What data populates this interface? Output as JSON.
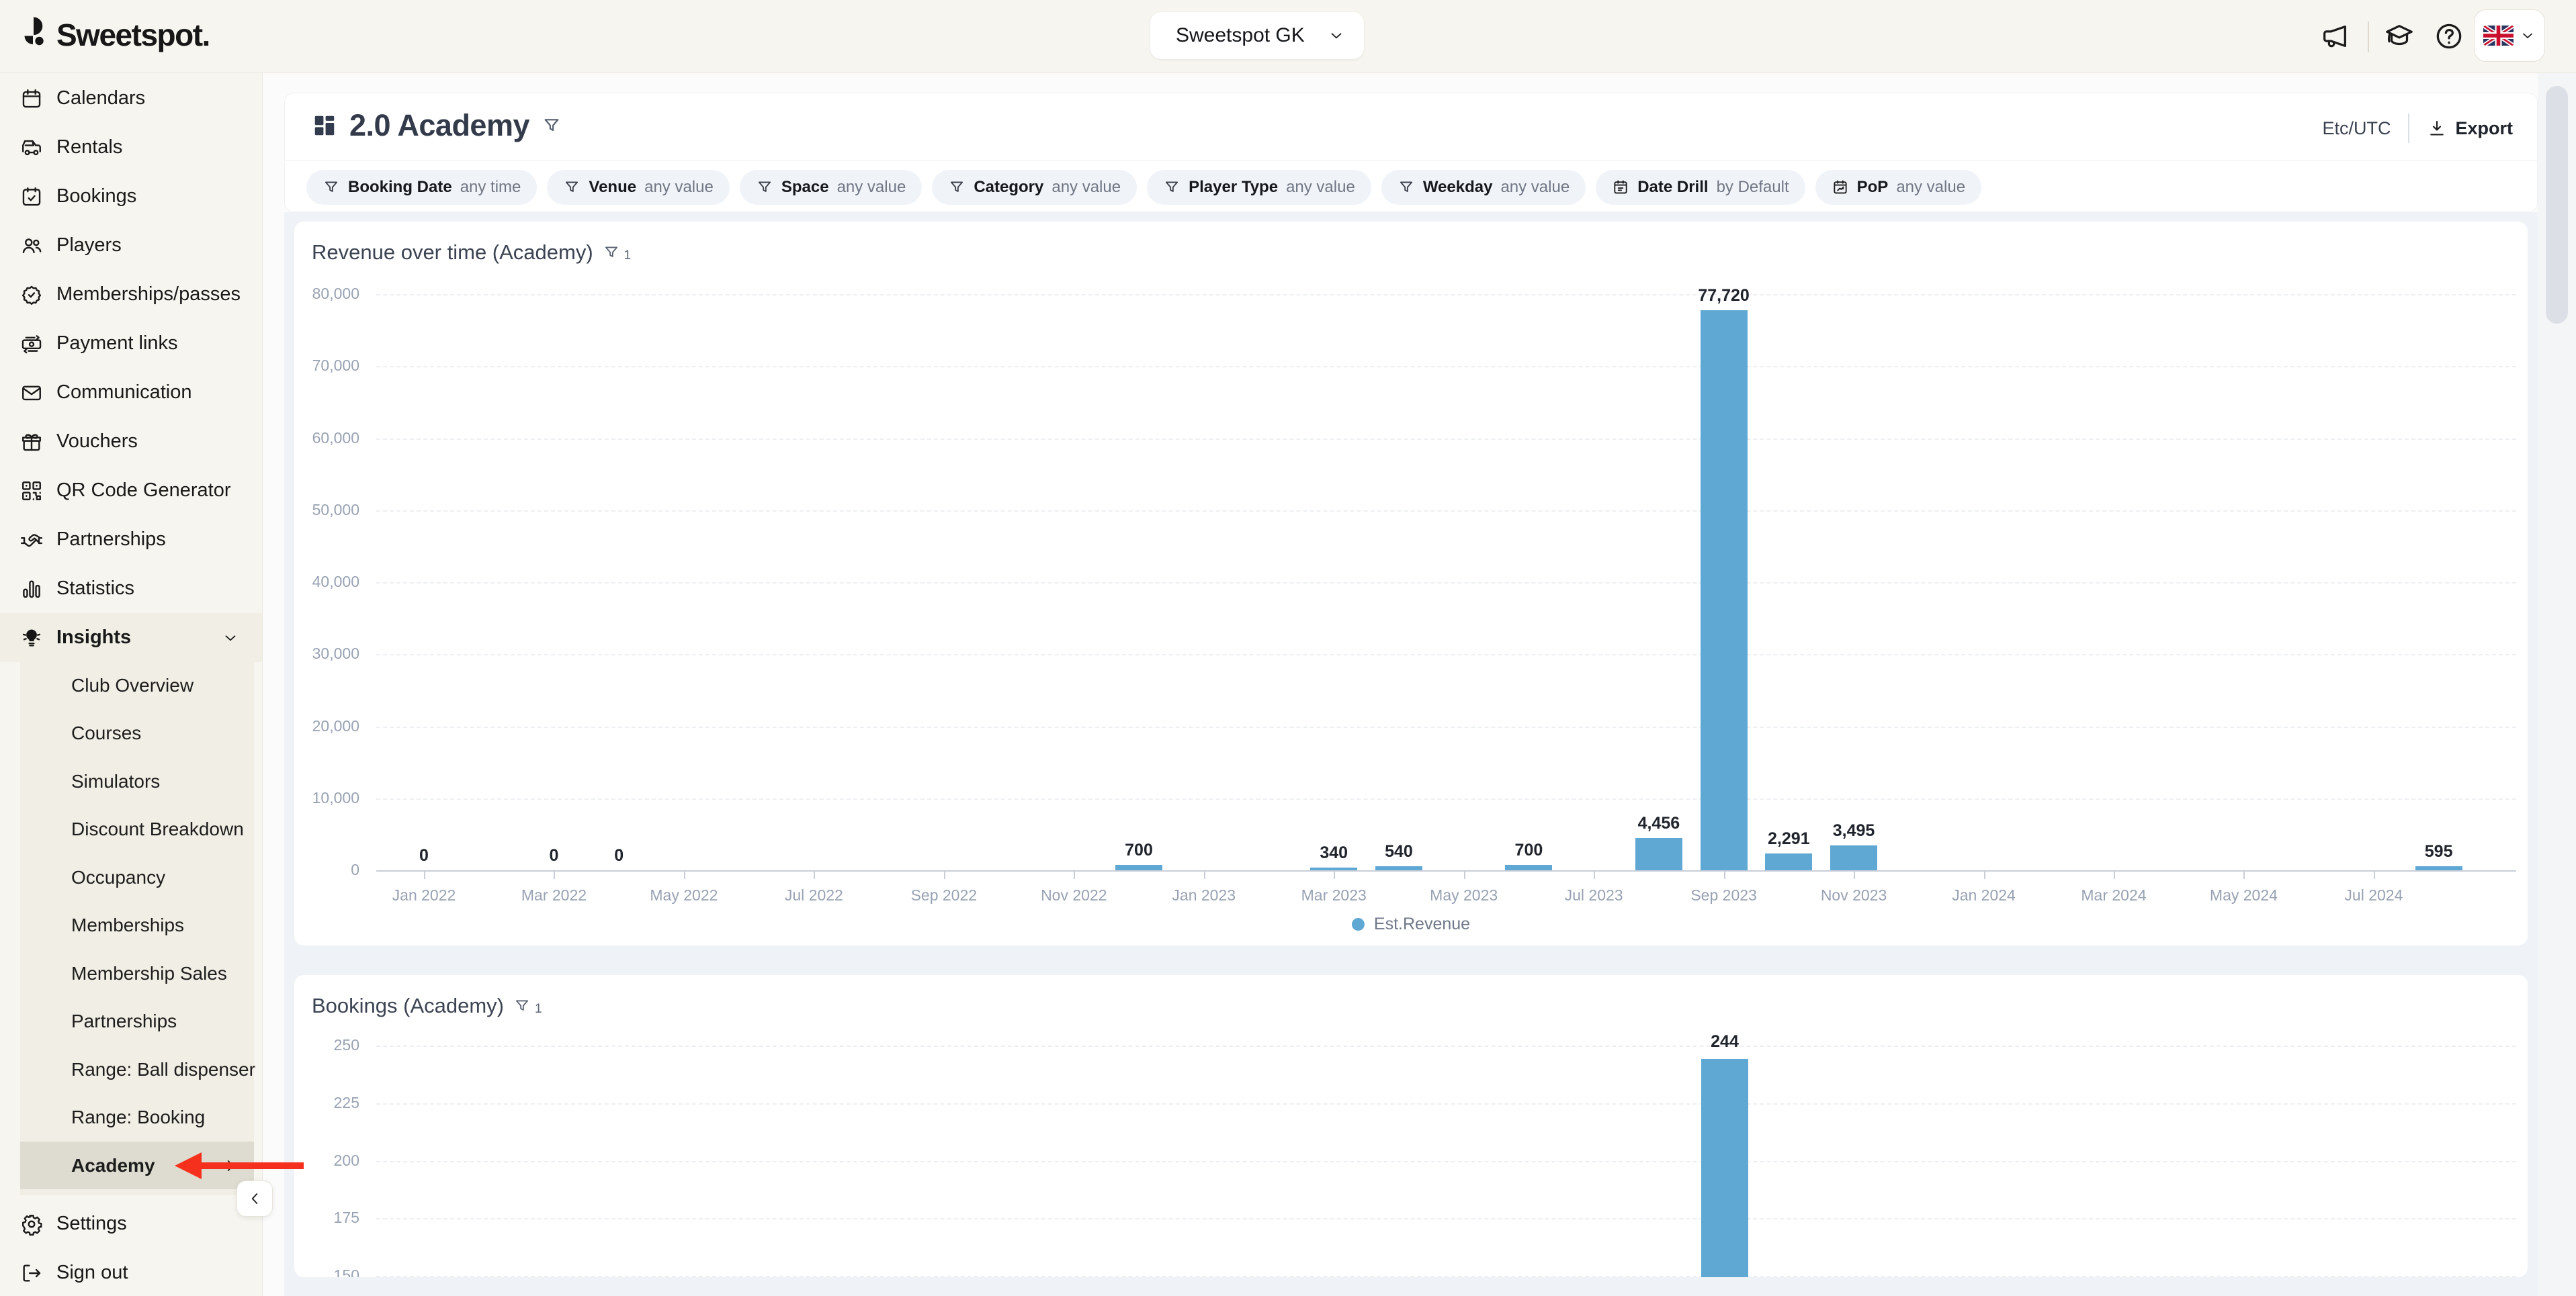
{
  "topbar": {
    "logo": "Sweetspot.",
    "org_selector": {
      "value": "Sweetspot GK"
    },
    "action_icons": [
      "megaphone",
      "graduation-cap",
      "help-circle"
    ],
    "language": {
      "flag": "united-kingdom"
    }
  },
  "sidebar": {
    "items": [
      {
        "label": "Calendars",
        "icon": "calendar"
      },
      {
        "label": "Rentals",
        "icon": "golf-cart"
      },
      {
        "label": "Bookings",
        "icon": "calendar-check"
      },
      {
        "label": "Players",
        "icon": "users"
      },
      {
        "label": "Memberships/passes",
        "icon": "badge-check"
      },
      {
        "label": "Payment links",
        "icon": "banknote"
      },
      {
        "label": "Communication",
        "icon": "envelope"
      },
      {
        "label": "Vouchers",
        "icon": "gift"
      },
      {
        "label": "QR Code Generator",
        "icon": "qr-code"
      },
      {
        "label": "Partnerships",
        "icon": "handshake"
      },
      {
        "label": "Statistics",
        "icon": "bar-chart"
      },
      {
        "label": "Insights",
        "icon": "lightbulb",
        "expanded": true
      }
    ],
    "insights_children": [
      {
        "label": "Club Overview"
      },
      {
        "label": "Courses"
      },
      {
        "label": "Simulators"
      },
      {
        "label": "Discount Breakdown"
      },
      {
        "label": "Occupancy"
      },
      {
        "label": "Memberships"
      },
      {
        "label": "Membership Sales"
      },
      {
        "label": "Partnerships"
      },
      {
        "label": "Range: Ball dispenser"
      },
      {
        "label": "Range: Booking"
      },
      {
        "label": "Academy",
        "selected": true
      }
    ],
    "footer": [
      {
        "label": "Settings",
        "icon": "gear"
      },
      {
        "label": "Sign out",
        "icon": "sign-out"
      }
    ]
  },
  "header": {
    "title": "2.0 Academy",
    "timezone": "Etc/UTC",
    "export_label": "Export"
  },
  "filters": [
    {
      "label": "Booking Date",
      "value": "any time",
      "icon": "funnel"
    },
    {
      "label": "Venue",
      "value": "any value",
      "icon": "funnel"
    },
    {
      "label": "Space",
      "value": "any value",
      "icon": "funnel"
    },
    {
      "label": "Category",
      "value": "any value",
      "icon": "funnel"
    },
    {
      "label": "Player Type",
      "value": "any value",
      "icon": "funnel"
    },
    {
      "label": "Weekday",
      "value": "any value",
      "icon": "funnel"
    },
    {
      "label": "Date Drill",
      "value": "by Default",
      "icon": "calendar-clock"
    },
    {
      "label": "PoP",
      "value": "any value",
      "icon": "calendar-trend"
    }
  ],
  "chart_data": [
    {
      "type": "bar",
      "title": "Revenue over time (Academy)",
      "filter_count": "1",
      "series": [
        {
          "name": "Est.Revenue",
          "color": "#5fa8d3"
        }
      ],
      "ylim": [
        0,
        80000
      ],
      "y_ticks": [
        "80,000",
        "70,000",
        "60,000",
        "50,000",
        "40,000",
        "30,000",
        "20,000",
        "10,000",
        "0"
      ],
      "x_ticks": [
        "Jan 2022",
        "Mar 2022",
        "May 2022",
        "Jul 2022",
        "Sep 2022",
        "Nov 2022",
        "Jan 2023",
        "Mar 2023",
        "May 2023",
        "Jul 2023",
        "Sep 2023",
        "Nov 2023",
        "Jan 2024",
        "Mar 2024",
        "May 2024",
        "Jul 2024"
      ],
      "bars": [
        {
          "month": "Jan 2022",
          "value": 0,
          "label": "0"
        },
        {
          "month": "Mar 2022",
          "value": 0,
          "label": "0"
        },
        {
          "month": "Apr 2022",
          "value": 0,
          "label": "0"
        },
        {
          "month": "Dec 2022",
          "value": 700,
          "label": "700"
        },
        {
          "month": "Mar 2023",
          "value": 340,
          "label": "340"
        },
        {
          "month": "Apr 2023",
          "value": 540,
          "label": "540"
        },
        {
          "month": "Jun 2023",
          "value": 700,
          "label": "700"
        },
        {
          "month": "Aug 2023",
          "value": 4456,
          "label": "4,456"
        },
        {
          "month": "Sep 2023",
          "value": 77720,
          "label": "77,720"
        },
        {
          "month": "Oct 2023",
          "value": 2291,
          "label": "2,291"
        },
        {
          "month": "Nov 2023",
          "value": 3495,
          "label": "3,495"
        },
        {
          "month": "Aug 2024",
          "value": 595,
          "label": "595"
        }
      ],
      "legend": [
        "Est.Revenue"
      ],
      "grid": "horizontal-dashed",
      "legend_position": "bottom-center"
    },
    {
      "type": "bar",
      "title": "Bookings (Academy)",
      "filter_count": "1",
      "color": "#5fa8d3",
      "y_ticks_visible": [
        "250",
        "225",
        "200",
        "175",
        "150"
      ],
      "bars": [
        {
          "month": "Sep 2023",
          "value": 244,
          "label": "244"
        }
      ],
      "grid": "horizontal-dashed"
    }
  ],
  "annotation": {
    "shape": "left-arrow",
    "color": "#f5311d",
    "points_at": "Academy"
  },
  "colors": {
    "accent_bar": "#5fa8d3",
    "sidebar_bg": "#f7f5ef",
    "insights_section_bg": "#f1efe5",
    "selected_item_bg": "#dedcd0",
    "content_section_bg": "#eff3f7",
    "annotation_red": "#f5311d"
  }
}
